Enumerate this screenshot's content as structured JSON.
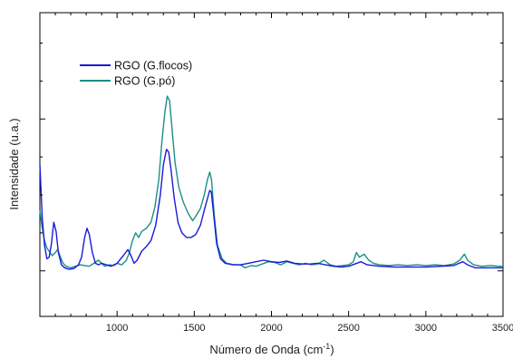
{
  "chart_data": {
    "type": "line",
    "title": "",
    "xlabel": "Número de Onda (cm",
    "xlabel_sup": "-1",
    "xlabel_suffix": ")",
    "ylabel": "Intensidade (u.a.)",
    "xlim": [
      500,
      3500
    ],
    "ylim": [
      -0.3,
      1.7
    ],
    "x_ticks": [
      1000,
      1500,
      2000,
      2500,
      3000,
      3500
    ],
    "x_tick_labels": [
      "1000",
      "1500",
      "2000",
      "2500",
      "3000",
      "3500"
    ],
    "y_tick_labels": false,
    "grid": false,
    "legend_position": "top-left",
    "series": [
      {
        "name": "RGO (G.flocos)",
        "color": "#1a1adb",
        "points": [
          [
            500,
            0.7
          ],
          [
            515,
            0.35
          ],
          [
            530,
            0.17
          ],
          [
            545,
            0.08
          ],
          [
            560,
            0.09
          ],
          [
            575,
            0.18
          ],
          [
            590,
            0.32
          ],
          [
            605,
            0.26
          ],
          [
            620,
            0.12
          ],
          [
            640,
            0.04
          ],
          [
            660,
            0.02
          ],
          [
            690,
            0.01
          ],
          [
            720,
            0.015
          ],
          [
            750,
            0.04
          ],
          [
            770,
            0.09
          ],
          [
            790,
            0.22
          ],
          [
            805,
            0.28
          ],
          [
            820,
            0.24
          ],
          [
            840,
            0.12
          ],
          [
            860,
            0.05
          ],
          [
            880,
            0.04
          ],
          [
            900,
            0.05
          ],
          [
            930,
            0.04
          ],
          [
            960,
            0.03
          ],
          [
            1000,
            0.05
          ],
          [
            1040,
            0.1
          ],
          [
            1070,
            0.14
          ],
          [
            1090,
            0.1
          ],
          [
            1110,
            0.05
          ],
          [
            1130,
            0.07
          ],
          [
            1160,
            0.13
          ],
          [
            1190,
            0.16
          ],
          [
            1220,
            0.2
          ],
          [
            1250,
            0.3
          ],
          [
            1280,
            0.5
          ],
          [
            1300,
            0.7
          ],
          [
            1320,
            0.8
          ],
          [
            1335,
            0.78
          ],
          [
            1350,
            0.66
          ],
          [
            1370,
            0.48
          ],
          [
            1395,
            0.32
          ],
          [
            1420,
            0.25
          ],
          [
            1450,
            0.22
          ],
          [
            1480,
            0.22
          ],
          [
            1510,
            0.24
          ],
          [
            1540,
            0.3
          ],
          [
            1570,
            0.42
          ],
          [
            1600,
            0.53
          ],
          [
            1610,
            0.52
          ],
          [
            1625,
            0.38
          ],
          [
            1645,
            0.18
          ],
          [
            1670,
            0.08
          ],
          [
            1700,
            0.05
          ],
          [
            1750,
            0.04
          ],
          [
            1800,
            0.04
          ],
          [
            1850,
            0.05
          ],
          [
            1900,
            0.06
          ],
          [
            1950,
            0.07
          ],
          [
            2000,
            0.06
          ],
          [
            2050,
            0.055
          ],
          [
            2100,
            0.065
          ],
          [
            2150,
            0.05
          ],
          [
            2200,
            0.045
          ],
          [
            2250,
            0.045
          ],
          [
            2300,
            0.05
          ],
          [
            2350,
            0.04
          ],
          [
            2400,
            0.03
          ],
          [
            2450,
            0.025
          ],
          [
            2500,
            0.03
          ],
          [
            2540,
            0.045
          ],
          [
            2580,
            0.06
          ],
          [
            2620,
            0.04
          ],
          [
            2700,
            0.03
          ],
          [
            2800,
            0.025
          ],
          [
            2900,
            0.025
          ],
          [
            3000,
            0.025
          ],
          [
            3100,
            0.03
          ],
          [
            3180,
            0.035
          ],
          [
            3240,
            0.06
          ],
          [
            3270,
            0.04
          ],
          [
            3320,
            0.02
          ],
          [
            3400,
            0.02
          ],
          [
            3500,
            0.02
          ]
        ]
      },
      {
        "name": "RGO (G.pó)",
        "color": "#1a8f87",
        "points": [
          [
            500,
            0.4
          ],
          [
            515,
            0.28
          ],
          [
            530,
            0.2
          ],
          [
            545,
            0.15
          ],
          [
            560,
            0.13
          ],
          [
            580,
            0.1
          ],
          [
            600,
            0.12
          ],
          [
            615,
            0.14
          ],
          [
            630,
            0.1
          ],
          [
            650,
            0.05
          ],
          [
            670,
            0.03
          ],
          [
            700,
            0.02
          ],
          [
            730,
            0.03
          ],
          [
            760,
            0.04
          ],
          [
            790,
            0.035
          ],
          [
            820,
            0.03
          ],
          [
            850,
            0.05
          ],
          [
            880,
            0.07
          ],
          [
            900,
            0.05
          ],
          [
            920,
            0.03
          ],
          [
            950,
            0.04
          ],
          [
            980,
            0.035
          ],
          [
            1000,
            0.05
          ],
          [
            1030,
            0.04
          ],
          [
            1060,
            0.07
          ],
          [
            1080,
            0.12
          ],
          [
            1100,
            0.2
          ],
          [
            1120,
            0.25
          ],
          [
            1140,
            0.22
          ],
          [
            1160,
            0.26
          ],
          [
            1190,
            0.28
          ],
          [
            1220,
            0.32
          ],
          [
            1245,
            0.42
          ],
          [
            1270,
            0.6
          ],
          [
            1290,
            0.85
          ],
          [
            1310,
            1.05
          ],
          [
            1325,
            1.15
          ],
          [
            1340,
            1.12
          ],
          [
            1355,
            0.95
          ],
          [
            1375,
            0.72
          ],
          [
            1400,
            0.55
          ],
          [
            1430,
            0.45
          ],
          [
            1460,
            0.38
          ],
          [
            1490,
            0.33
          ],
          [
            1510,
            0.36
          ],
          [
            1540,
            0.41
          ],
          [
            1565,
            0.5
          ],
          [
            1585,
            0.6
          ],
          [
            1600,
            0.65
          ],
          [
            1612,
            0.6
          ],
          [
            1630,
            0.36
          ],
          [
            1650,
            0.17
          ],
          [
            1680,
            0.08
          ],
          [
            1710,
            0.05
          ],
          [
            1760,
            0.04
          ],
          [
            1800,
            0.04
          ],
          [
            1830,
            0.02
          ],
          [
            1870,
            0.035
          ],
          [
            1900,
            0.03
          ],
          [
            1940,
            0.045
          ],
          [
            1980,
            0.06
          ],
          [
            2020,
            0.055
          ],
          [
            2060,
            0.04
          ],
          [
            2100,
            0.06
          ],
          [
            2140,
            0.05
          ],
          [
            2180,
            0.04
          ],
          [
            2220,
            0.05
          ],
          [
            2260,
            0.04
          ],
          [
            2300,
            0.045
          ],
          [
            2340,
            0.07
          ],
          [
            2380,
            0.04
          ],
          [
            2420,
            0.03
          ],
          [
            2460,
            0.035
          ],
          [
            2500,
            0.04
          ],
          [
            2530,
            0.06
          ],
          [
            2550,
            0.12
          ],
          [
            2570,
            0.09
          ],
          [
            2600,
            0.11
          ],
          [
            2630,
            0.07
          ],
          [
            2660,
            0.05
          ],
          [
            2700,
            0.04
          ],
          [
            2760,
            0.035
          ],
          [
            2820,
            0.04
          ],
          [
            2880,
            0.035
          ],
          [
            2940,
            0.04
          ],
          [
            3000,
            0.035
          ],
          [
            3060,
            0.04
          ],
          [
            3120,
            0.035
          ],
          [
            3180,
            0.045
          ],
          [
            3220,
            0.07
          ],
          [
            3250,
            0.11
          ],
          [
            3270,
            0.07
          ],
          [
            3310,
            0.04
          ],
          [
            3360,
            0.03
          ],
          [
            3420,
            0.035
          ],
          [
            3470,
            0.03
          ],
          [
            3500,
            0.03
          ]
        ]
      }
    ]
  }
}
